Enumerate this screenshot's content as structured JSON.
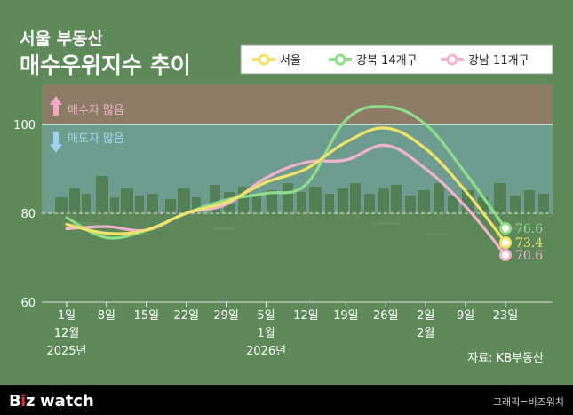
{
  "title": {
    "line1": "서울 부동산",
    "line2": "매수우위지수 추이"
  },
  "zones": {
    "buyer_more": "매수자 많음",
    "seller_more": "매도자 많음"
  },
  "source": "자료: KB부동산",
  "footer": {
    "logo_b": "B",
    "logo_i": "i",
    "logo_z": "z",
    "logo_watch": "watch",
    "credit": "그래픽=비즈워치"
  },
  "colors": {
    "seoul": "#f1e46a",
    "gangbuk": "#8fde8a",
    "gangnam": "#f2b3cf",
    "background": "#5e8a5a",
    "upper_band": "#8c7b65",
    "lower_band": "#6e9c8e"
  },
  "chart_data": {
    "type": "line",
    "title": "서울 부동산 매수우위지수 추이",
    "xlabel": "",
    "ylabel": "",
    "ylim": [
      60,
      110
    ],
    "yticks": [
      60,
      80,
      100
    ],
    "grid": true,
    "legend_position": "top-right",
    "categories": [
      "1일\n12월\n2025년",
      "8일",
      "15일",
      "22일",
      "29일",
      "5일\n1월\n2026년",
      "12일",
      "19일",
      "26일",
      "2일\n2월",
      "9일",
      "23일"
    ],
    "series": [
      {
        "name": "서울",
        "color": "#f1e46a",
        "values": [
          77.5,
          75.5,
          76.2,
          80.0,
          82.5,
          87.0,
          90.0,
          96.0,
          99.2,
          94.5,
          85.0,
          73.4
        ]
      },
      {
        "name": "강북 14개구",
        "color": "#8fde8a",
        "values": [
          79.0,
          74.5,
          76.2,
          80.0,
          83.0,
          84.5,
          86.5,
          101.0,
          104.0,
          100.0,
          89.0,
          76.6
        ]
      },
      {
        "name": "강남 11개구",
        "color": "#f2b3cf",
        "values": [
          76.5,
          77.0,
          76.2,
          80.0,
          82.0,
          88.0,
          91.5,
          92.0,
          95.3,
          90.0,
          81.5,
          70.6
        ]
      }
    ],
    "end_labels": [
      "73.4",
      "76.6",
      "70.6"
    ]
  }
}
